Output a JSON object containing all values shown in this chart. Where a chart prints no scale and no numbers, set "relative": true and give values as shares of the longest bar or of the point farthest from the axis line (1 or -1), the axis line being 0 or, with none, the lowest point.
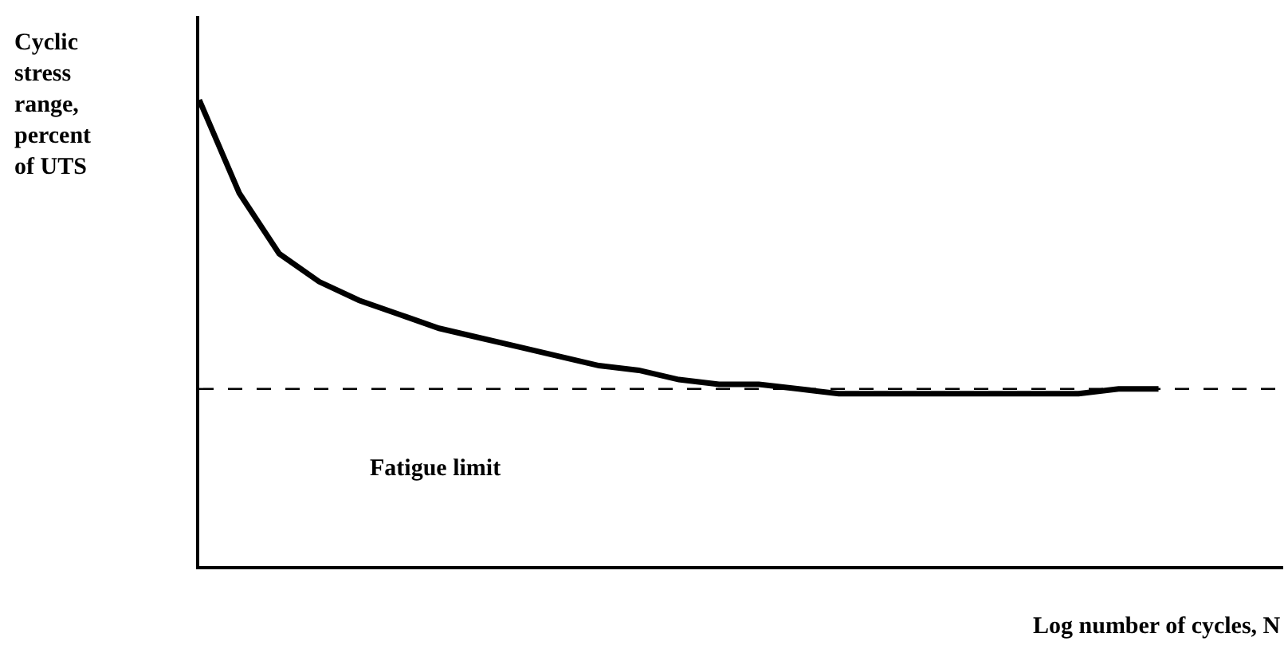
{
  "chart_data": {
    "type": "line",
    "relative": true,
    "ylabel": "Cyclic stress range, percent of UTS",
    "xlabel": "Log number of cycles, N",
    "categories": [
      null,
      null,
      null,
      null,
      null,
      null,
      null,
      null,
      null,
      null,
      null,
      null,
      null,
      null,
      null,
      null,
      null,
      null,
      null,
      null,
      null,
      null,
      null,
      null,
      null
    ],
    "series": [
      {
        "color": "#000000",
        "values": [
          1.0,
          0.8,
          0.67,
          0.61,
          0.57,
          0.54,
          0.51,
          0.49,
          0.47,
          0.45,
          0.43,
          0.42,
          0.4,
          0.39,
          0.39,
          0.38,
          0.37,
          0.37,
          0.37,
          0.37,
          0.37,
          0.37,
          0.37,
          0.38,
          0.38
        ]
      }
    ],
    "ref_lines": [
      {
        "axis": "y",
        "value": 0.38,
        "label": "Fatigue limit",
        "color": "#000000",
        "line_style": "dashed"
      }
    ],
    "legend": false,
    "marker": "none",
    "line_style": "solid",
    "tick_labels": false
  }
}
